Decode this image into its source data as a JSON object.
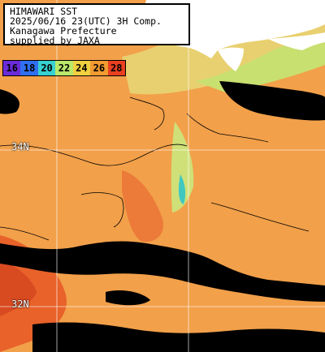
{
  "info": {
    "lines": [
      "HIMAWARI SST",
      "2025/06/16 23(UTC) 3H Comp.",
      "Kanagawa Prefecture",
      "supplied by JAXA"
    ]
  },
  "legend": {
    "items": [
      {
        "label": "16",
        "color": "#6a2bd8"
      },
      {
        "label": "18",
        "color": "#2f6ff0"
      },
      {
        "label": "20",
        "color": "#38d0d0"
      },
      {
        "label": "22",
        "color": "#b9e86a"
      },
      {
        "label": "24",
        "color": "#f0d040"
      },
      {
        "label": "26",
        "color": "#f09a30"
      },
      {
        "label": "28",
        "color": "#e84020"
      }
    ]
  },
  "grid": {
    "lat_labels": [
      {
        "label": "34N"
      },
      {
        "label": "32N"
      }
    ]
  },
  "colors": {
    "land": "#ffffff",
    "cloud": "#000000",
    "sea_main": "#f2a04a",
    "sea_warm": "#e8622a",
    "sea_cool": "#d6e070",
    "grid": "#ffffff"
  }
}
